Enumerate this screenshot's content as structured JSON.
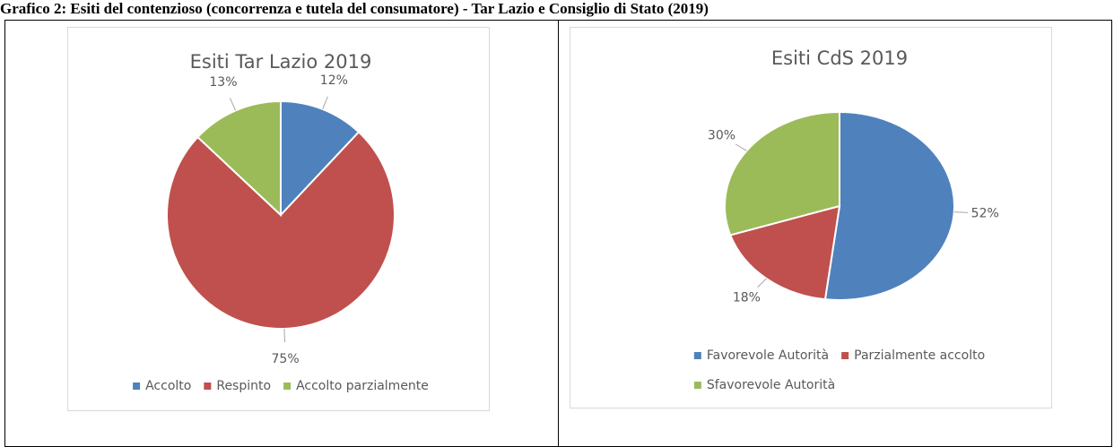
{
  "heading": "Grafico 2: Esiti del contenzioso (concorrenza e tutela del consumatore) - Tar Lazio e Consiglio di Stato (2019)",
  "chart_data": [
    {
      "type": "pie",
      "title": "Esiti Tar Lazio 2019",
      "categories": [
        "Accolto",
        "Respinto",
        "Accolto parzialmente"
      ],
      "values": [
        12,
        75,
        13
      ],
      "value_labels": [
        "12%",
        "75%",
        "13%"
      ],
      "colors": [
        "#4f81bd",
        "#c0504d",
        "#9bbb59"
      ],
      "legend": "bottom"
    },
    {
      "type": "pie",
      "title": "Esiti CdS 2019",
      "categories": [
        "Favorevole Autorità",
        "Parzialmente accolto",
        "Sfavorevole Autorità"
      ],
      "values": [
        52,
        18,
        30
      ],
      "value_labels": [
        "52%",
        "18%",
        "30%"
      ],
      "colors": [
        "#4f81bd",
        "#c0504d",
        "#9bbb59"
      ],
      "legend": "bottom"
    }
  ]
}
